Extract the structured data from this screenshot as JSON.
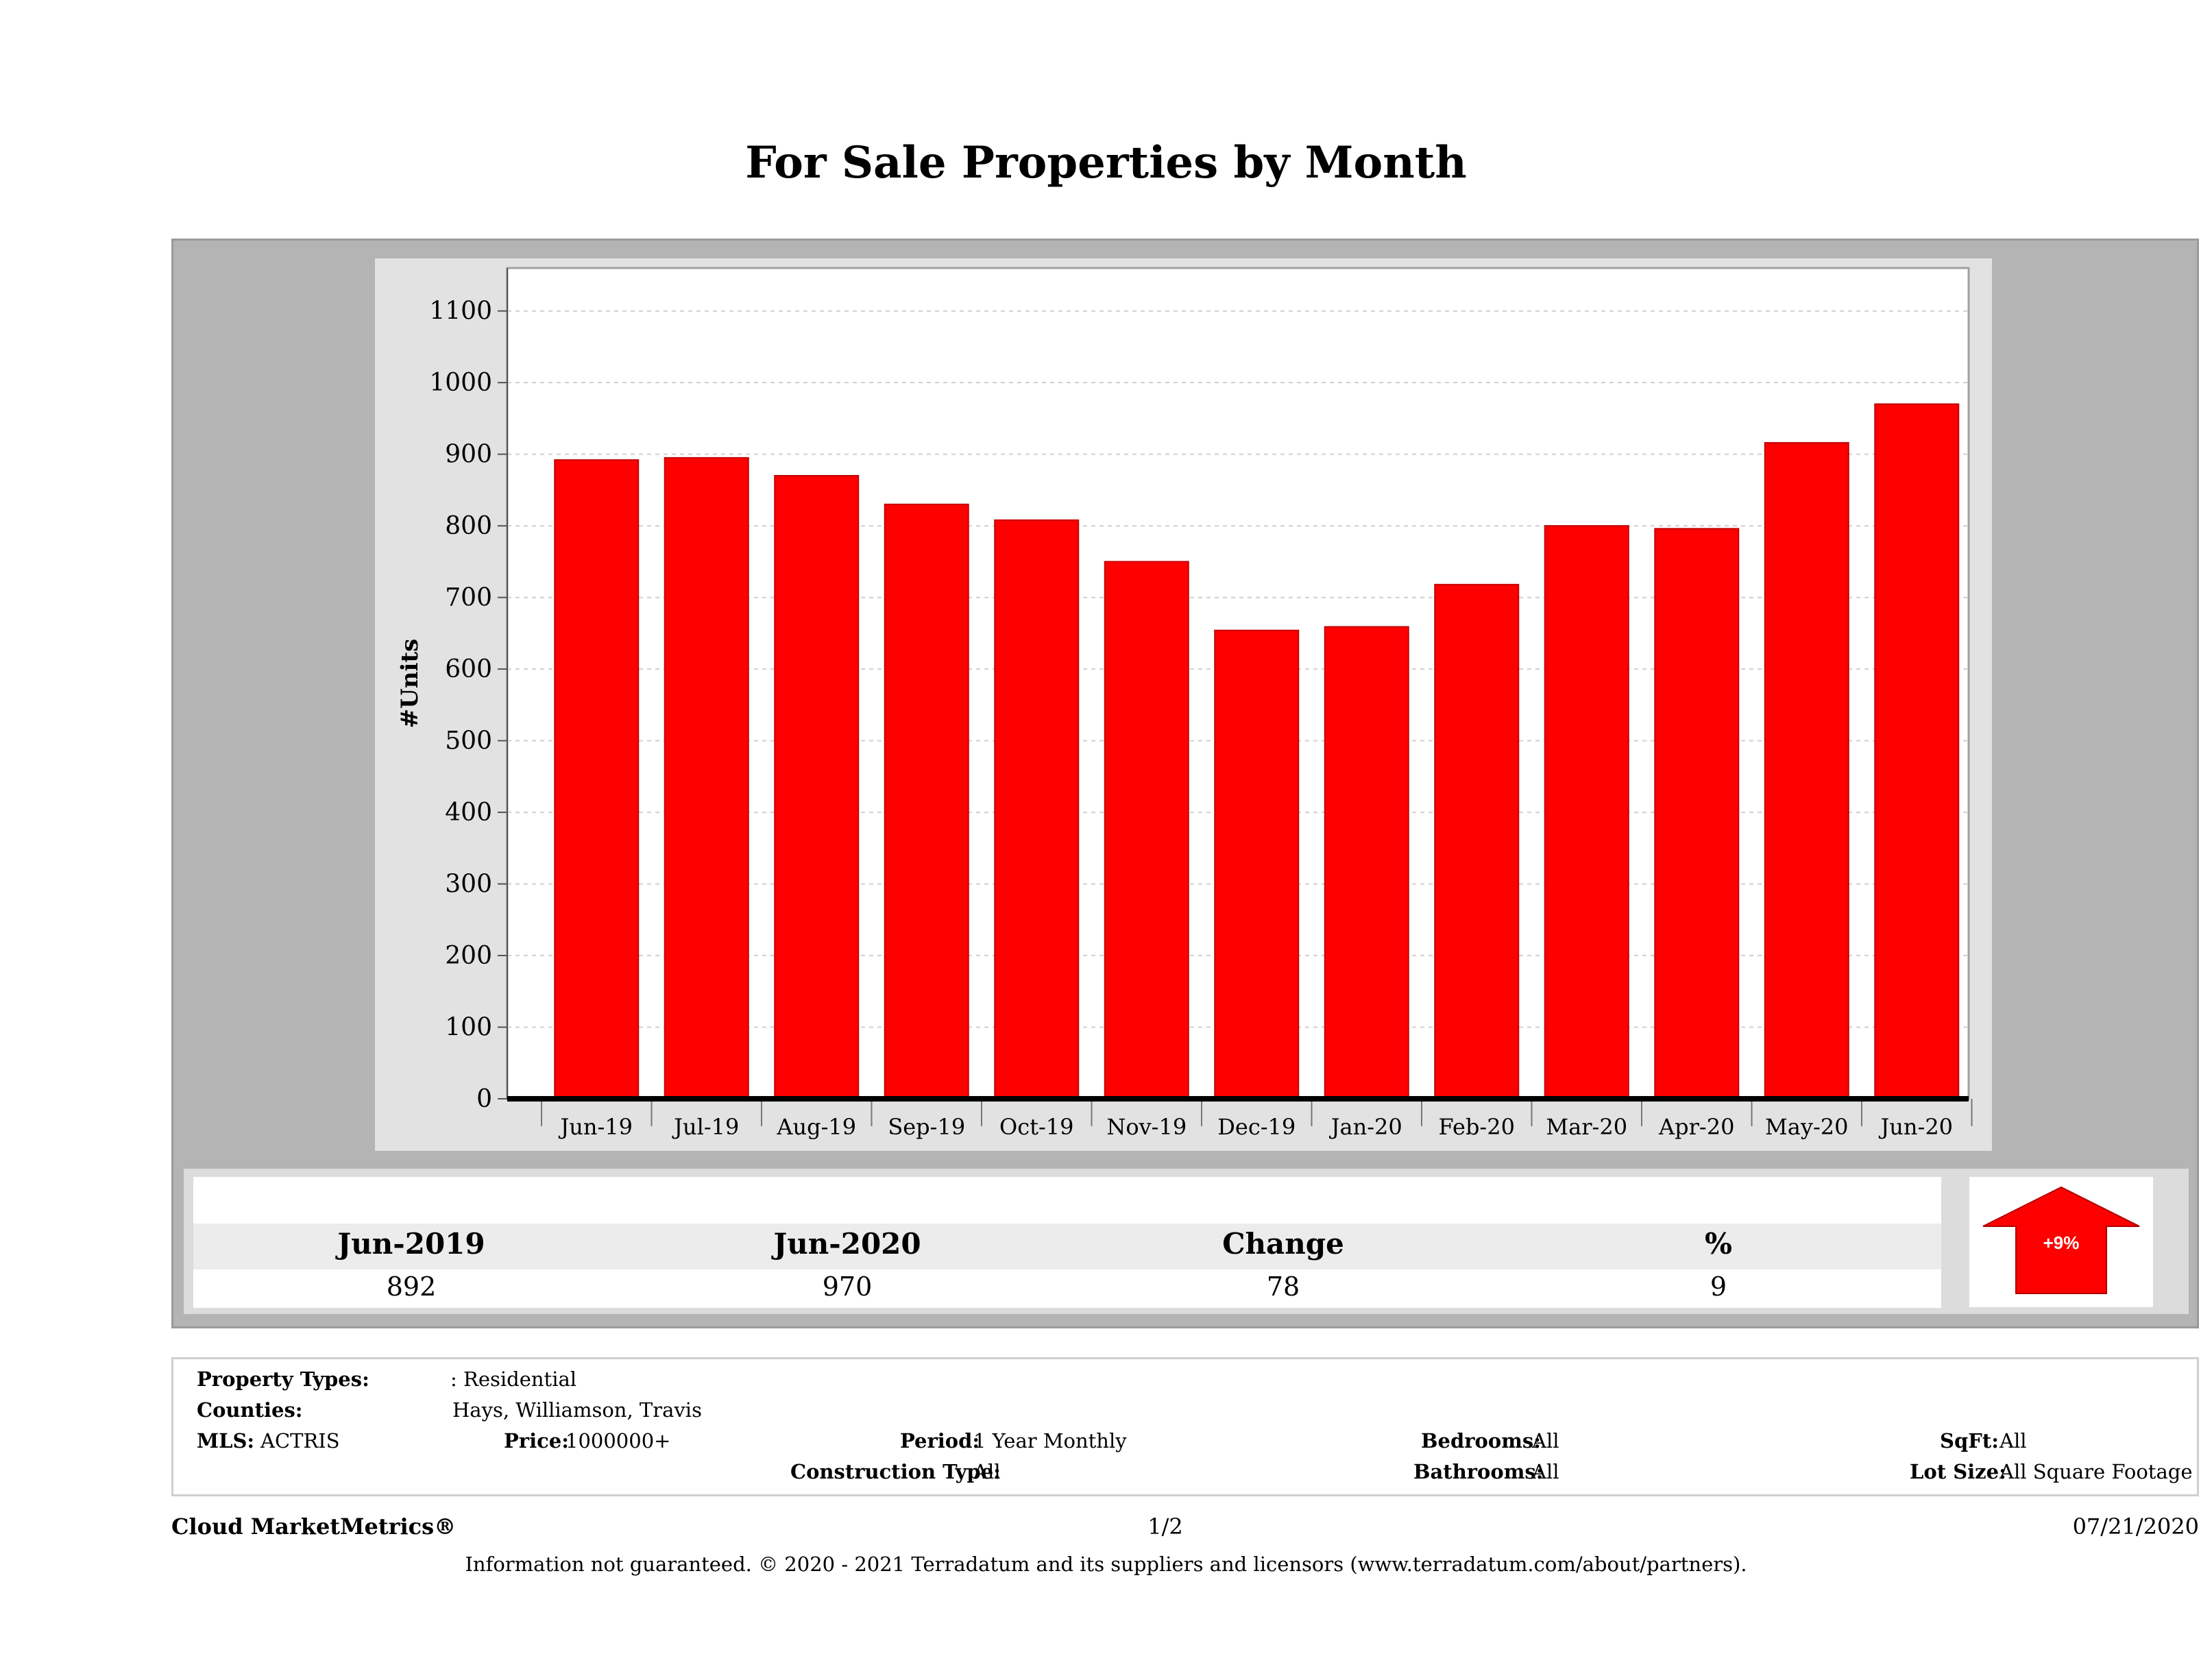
{
  "chart_data": {
    "type": "bar",
    "title": "For Sale Properties by Month",
    "ylabel": "#Units",
    "xlabel": "",
    "categories": [
      "Jun-19",
      "Jul-19",
      "Aug-19",
      "Sep-19",
      "Oct-19",
      "Nov-19",
      "Dec-19",
      "Jan-20",
      "Feb-20",
      "Mar-20",
      "Apr-20",
      "May-20",
      "Jun-20"
    ],
    "values": [
      892,
      895,
      870,
      830,
      808,
      750,
      654,
      659,
      718,
      800,
      796,
      916,
      970
    ],
    "ylim": [
      0,
      1160
    ],
    "yticks": [
      0,
      100,
      200,
      300,
      400,
      500,
      600,
      700,
      800,
      900,
      1000,
      1100
    ],
    "grid": true,
    "bar_color": "#ff0000"
  },
  "stats": {
    "headers": [
      "Jun-2019",
      "Jun-2020",
      "Change",
      "%"
    ],
    "values": [
      "892",
      "970",
      "78",
      "9"
    ],
    "badge": "+9%"
  },
  "info": {
    "property_types_label": "Property Types:",
    "property_types_value": ": Residential",
    "counties_label": "Counties:",
    "counties_value": "Hays, Williamson, Travis",
    "mls_label": "MLS:",
    "mls_value": "ACTRIS",
    "price_label": "Price:",
    "price_value": "1000000+",
    "period_label": "Period:",
    "period_value": "1 Year Monthly",
    "construction_label": "Construction Type:",
    "construction_value": "All",
    "bedrooms_label": "Bedrooms:",
    "bedrooms_value": "All",
    "bathrooms_label": "Bathrooms:",
    "bathrooms_value": "All",
    "sqft_label": "SqFt:",
    "sqft_value": "All",
    "lotsize_label": "Lot Size:",
    "lotsize_value": "All Square Footage"
  },
  "footer": {
    "brand": "Cloud MarketMetrics®",
    "page": "1/2",
    "date": "07/21/2020",
    "disclaimer": "Information not guaranteed. © 2020 - 2021 Terradatum and its suppliers and licensors (www.terradatum.com/about/partners)."
  }
}
